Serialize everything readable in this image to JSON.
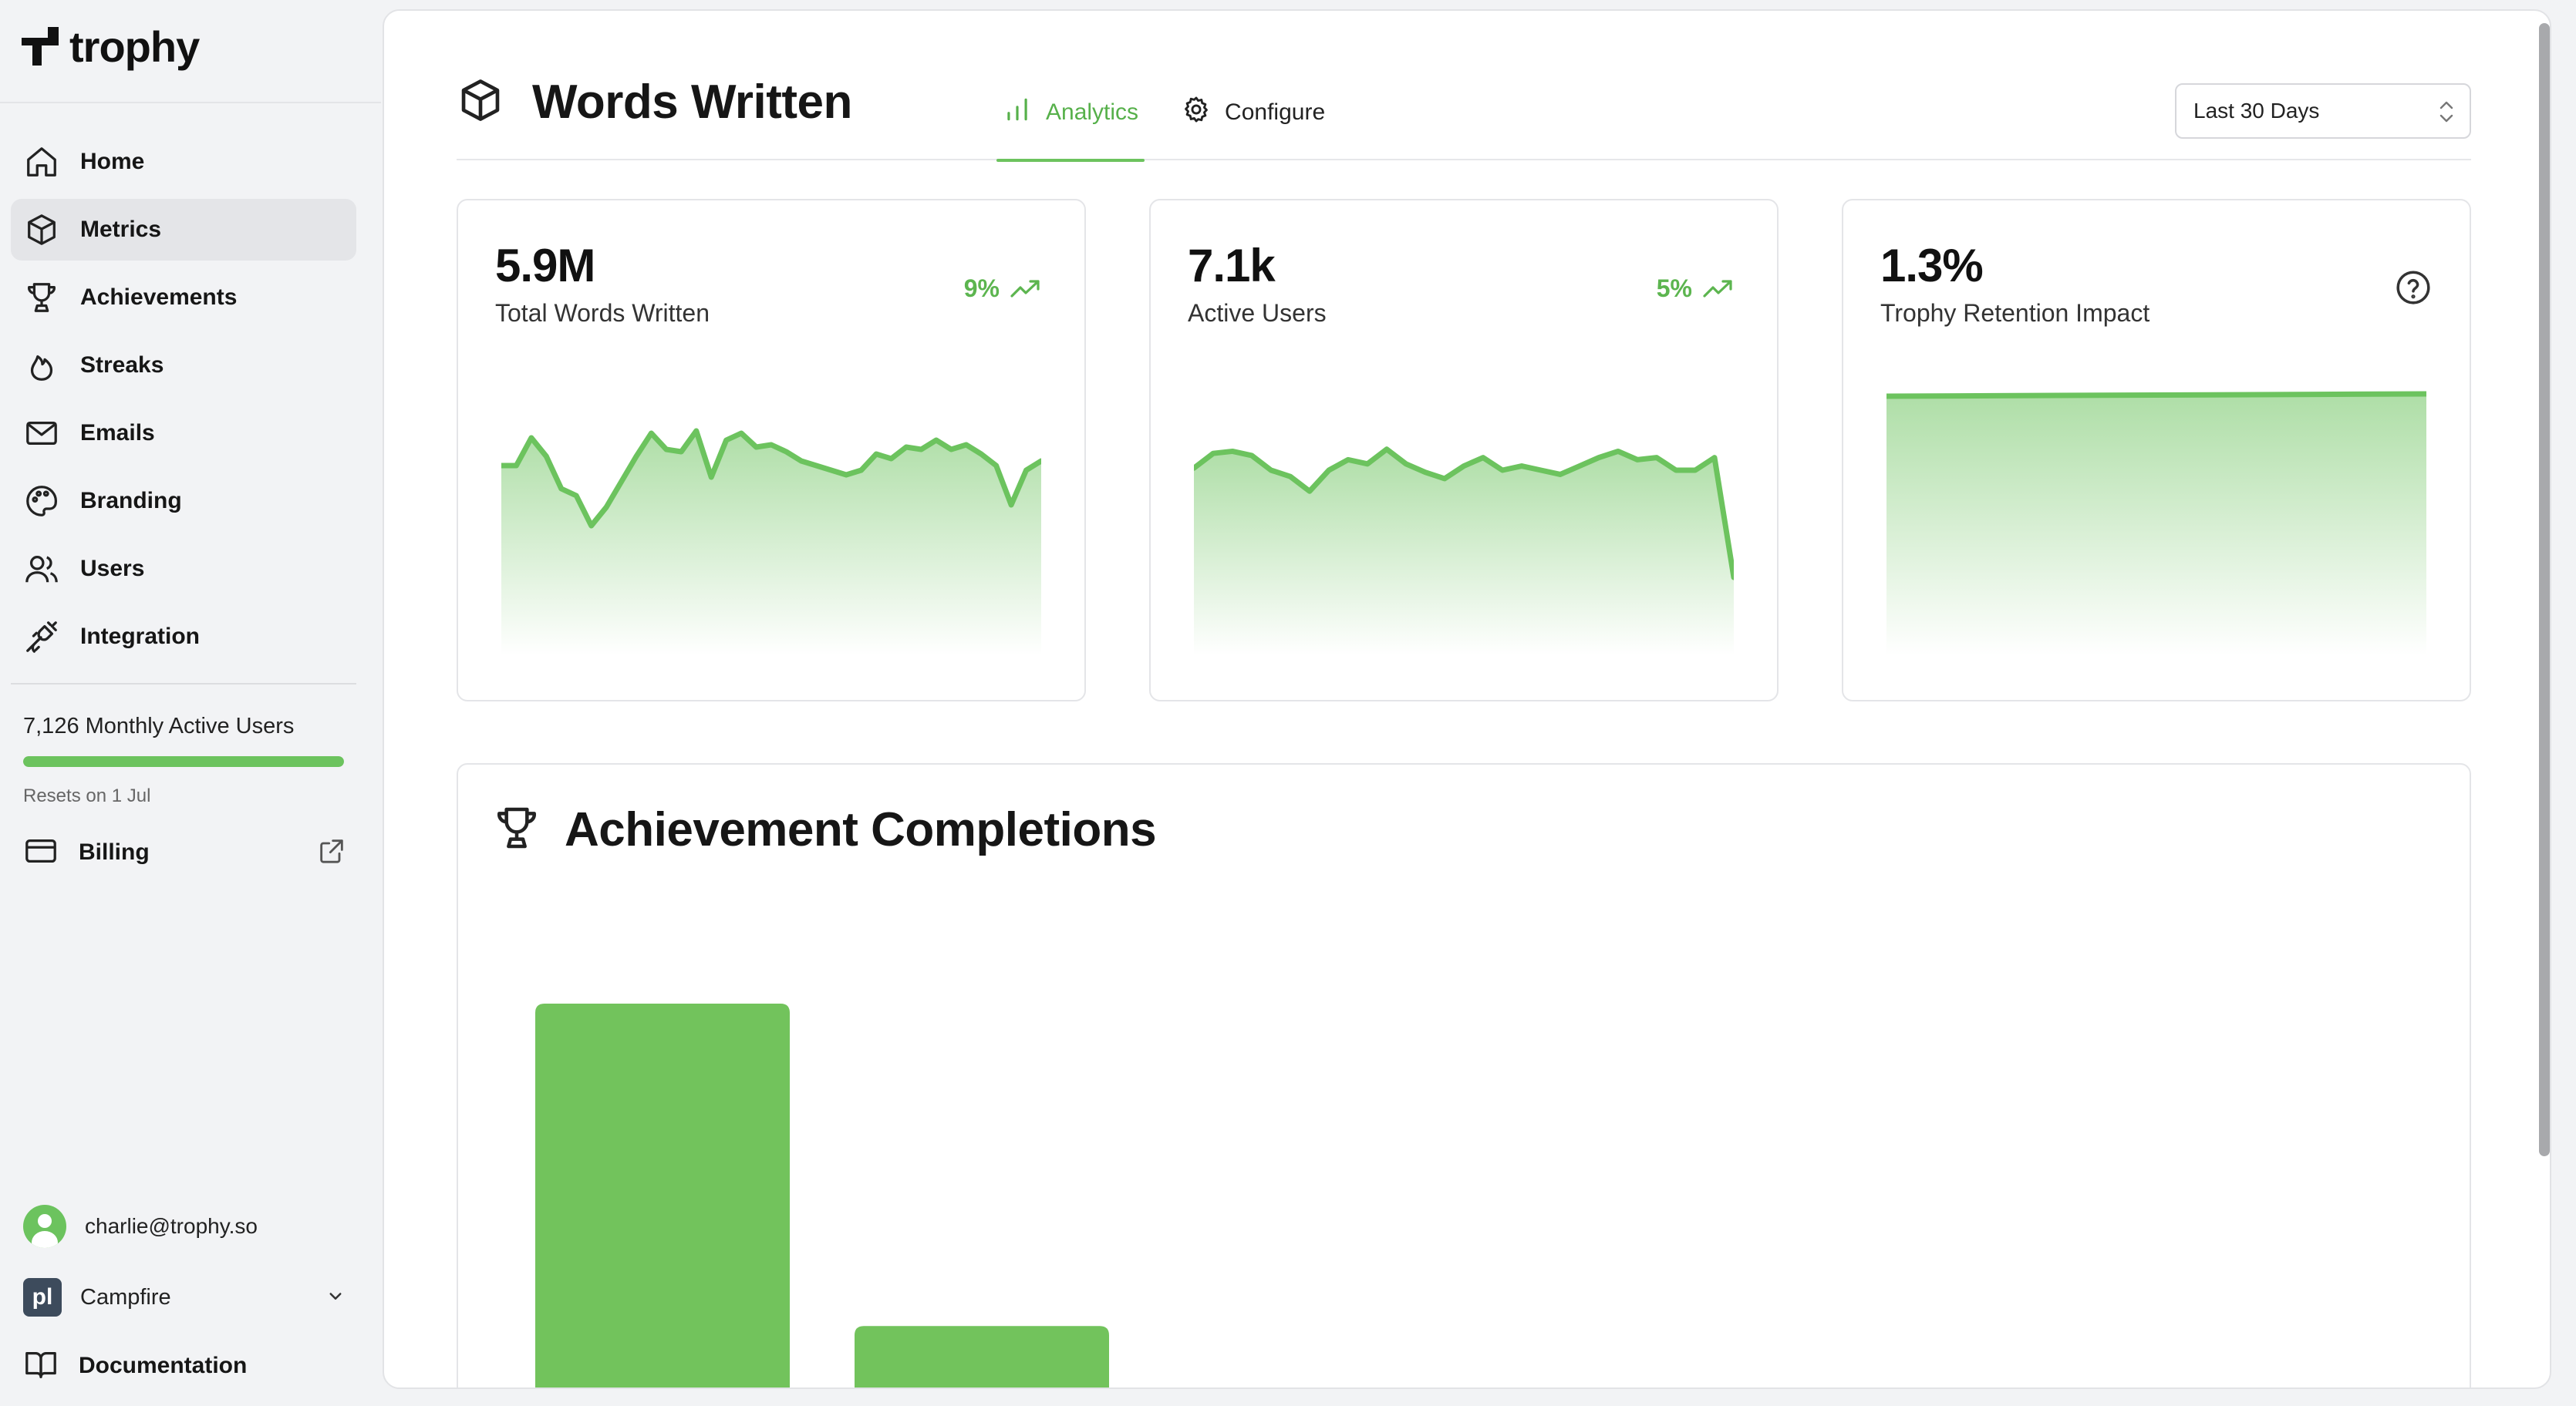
{
  "app": {
    "name": "trophy"
  },
  "sidebar": {
    "items": [
      {
        "label": "Home",
        "icon": "home-icon",
        "active": false
      },
      {
        "label": "Metrics",
        "icon": "cube-icon",
        "active": true
      },
      {
        "label": "Achievements",
        "icon": "trophy-icon",
        "active": false
      },
      {
        "label": "Streaks",
        "icon": "flame-icon",
        "active": false
      },
      {
        "label": "Emails",
        "icon": "mail-icon",
        "active": false
      },
      {
        "label": "Branding",
        "icon": "palette-icon",
        "active": false
      },
      {
        "label": "Users",
        "icon": "users-icon",
        "active": false
      },
      {
        "label": "Integration",
        "icon": "plug-icon",
        "active": false
      }
    ],
    "usage": {
      "text": "7,126 Monthly Active Users",
      "progress": 1.0,
      "reset_text": "Resets on 1 Jul"
    },
    "billing_label": "Billing",
    "user_email": "charlie@trophy.so",
    "org_name": "Campfire",
    "org_logo_text": "pl",
    "docs_label": "Documentation"
  },
  "header": {
    "title": "Words Written",
    "tabs": [
      {
        "label": "Analytics",
        "icon": "bar-chart-icon",
        "active": true
      },
      {
        "label": "Configure",
        "icon": "gear-icon",
        "active": false
      }
    ],
    "range": {
      "selected": "Last 30 Days"
    }
  },
  "metrics": [
    {
      "value": "5.9M",
      "label": "Total Words Written",
      "trend": "9%",
      "trend_direction": "up",
      "kind": "trend"
    },
    {
      "value": "7.1k",
      "label": "Active Users",
      "trend": "5%",
      "trend_direction": "up",
      "kind": "trend"
    },
    {
      "value": "1.3%",
      "label": "Trophy Retention Impact",
      "kind": "help"
    }
  ],
  "colors": {
    "accent": "#6cc35e",
    "accent_text": "#5cb54f",
    "bar": "#72c35c"
  },
  "chart_data": [
    {
      "type": "area",
      "series": [
        {
          "values": [
            62,
            62,
            74,
            66,
            52,
            49,
            36,
            44,
            55,
            66,
            76,
            69,
            68,
            77,
            57,
            73,
            76,
            70,
            71,
            68,
            64,
            62,
            60,
            58,
            60,
            67,
            65,
            70,
            69,
            73,
            69,
            71,
            67,
            62,
            45,
            60,
            64
          ]
        }
      ],
      "ylim": [
        0,
        100
      ]
    },
    {
      "type": "area",
      "series": [
        {
          "values": [
            57,
            64,
            65,
            63,
            56,
            53,
            46,
            56,
            61,
            59,
            66,
            59,
            55,
            52,
            58,
            62,
            56,
            58,
            56,
            54,
            58,
            62,
            65,
            61,
            62,
            56,
            56,
            62,
            5
          ]
        }
      ],
      "ylim": [
        -10,
        100
      ]
    },
    {
      "type": "area",
      "series": [
        {
          "values": [
            92,
            92.2,
            92.4,
            92.6,
            92.8,
            93.0
          ]
        }
      ],
      "ylim": [
        0,
        100
      ]
    },
    {
      "type": "bar",
      "title": "Achievement Completions",
      "categories": [
        "",
        ""
      ],
      "values": [
        100,
        18
      ],
      "ylim": [
        0,
        100
      ]
    }
  ]
}
